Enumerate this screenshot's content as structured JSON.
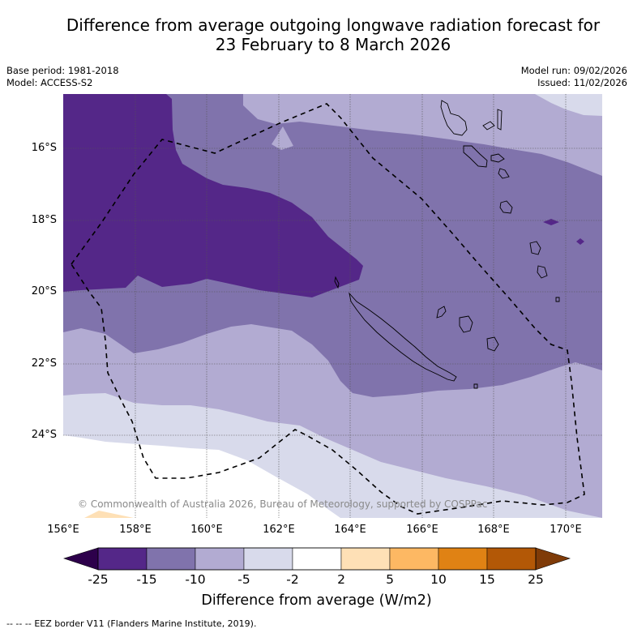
{
  "title": {
    "line1": "Difference from average outgoing longwave radiation forecast for",
    "line2": "23 February to 8 March 2026"
  },
  "meta_left": {
    "base_period": "Base period: 1981-2018",
    "model": "Model: ACCESS-S2"
  },
  "meta_right": {
    "model_run": "Model run: 09/02/2026",
    "issued": "Issued: 11/02/2026"
  },
  "map": {
    "region": "New Caledonia / Vanuatu",
    "lon_range": [
      156,
      171
    ],
    "lat_range": [
      -26.3,
      -14.5
    ],
    "lon_ticks": [
      "156°E",
      "158°E",
      "160°E",
      "162°E",
      "164°E",
      "166°E",
      "168°E",
      "170°E"
    ],
    "lat_ticks": [
      "16°S",
      "18°S",
      "20°S",
      "22°S",
      "24°S"
    ],
    "copyright": "© Commonwealth of Australia 2026, Bureau of Meteorology, supported by COSPPac"
  },
  "colorbar": {
    "title": "Difference from average (W/m2)",
    "ticks": [
      "-25",
      "-15",
      "-10",
      "-5",
      "-2",
      "2",
      "5",
      "10",
      "15",
      "25"
    ],
    "under_color": "#2d004b",
    "over_color": "#7f3b08",
    "colors": [
      "#542788",
      "#8073ac",
      "#b2abd2",
      "#d8daeb",
      "#ffffff",
      "#fee0b6",
      "#fdb863",
      "#e08214",
      "#b35806"
    ]
  },
  "footer": {
    "legend_marker": "--  --  --",
    "legend_text": "EEZ border V11 (Flanders Marine Institute, 2019)."
  }
}
